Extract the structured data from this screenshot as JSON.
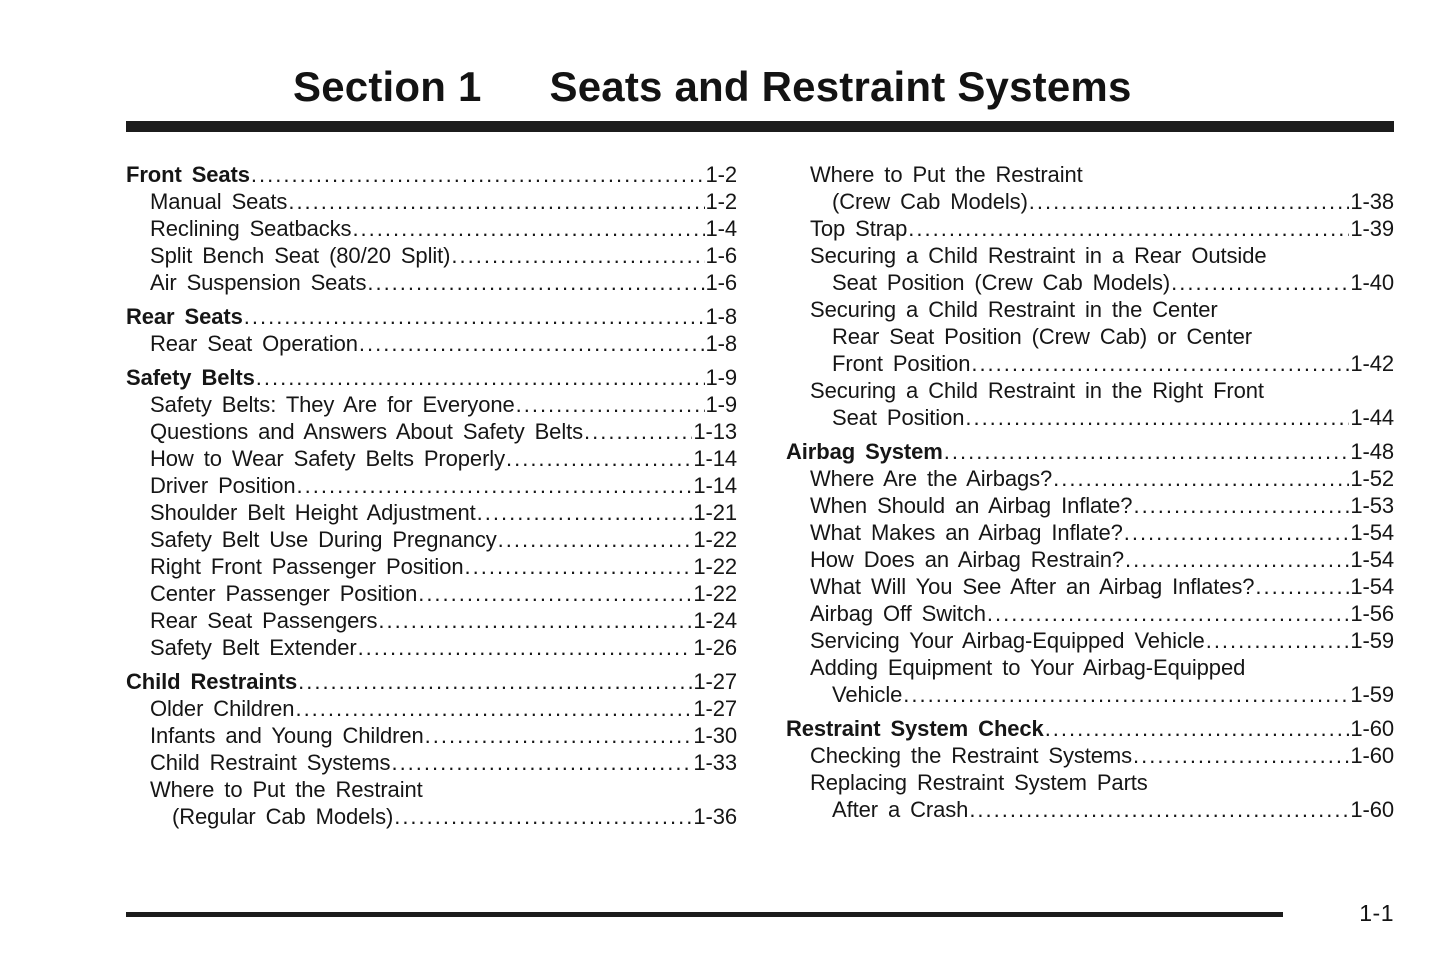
{
  "header": {
    "section_label": "Section 1",
    "section_name": "Seats and Restraint Systems"
  },
  "footer": {
    "page_number": "1-1"
  },
  "toc": {
    "columns": [
      {
        "entries": [
          {
            "lines": [
              "Front Seats"
            ],
            "page": "1-2",
            "bold": true,
            "gap": false
          },
          {
            "lines": [
              "Manual Seats"
            ],
            "page": "1-2",
            "bold": false,
            "gap": false
          },
          {
            "lines": [
              "Reclining Seatbacks"
            ],
            "page": "1-4",
            "bold": false,
            "gap": false
          },
          {
            "lines": [
              "Split Bench Seat (80/20 Split)"
            ],
            "page": "1-6",
            "bold": false,
            "gap": false
          },
          {
            "lines": [
              "Air Suspension Seats"
            ],
            "page": "1-6",
            "bold": false,
            "gap": false
          },
          {
            "lines": [
              "Rear Seats"
            ],
            "page": "1-8",
            "bold": true,
            "gap": true
          },
          {
            "lines": [
              "Rear Seat Operation"
            ],
            "page": "1-8",
            "bold": false,
            "gap": false
          },
          {
            "lines": [
              "Safety Belts"
            ],
            "page": "1-9",
            "bold": true,
            "gap": true
          },
          {
            "lines": [
              "Safety Belts: They Are for Everyone"
            ],
            "page": "1-9",
            "bold": false,
            "gap": false
          },
          {
            "lines": [
              "Questions and Answers About Safety Belts"
            ],
            "page": "1-13",
            "bold": false,
            "gap": false
          },
          {
            "lines": [
              "How to Wear Safety Belts Properly"
            ],
            "page": "1-14",
            "bold": false,
            "gap": false
          },
          {
            "lines": [
              "Driver Position"
            ],
            "page": "1-14",
            "bold": false,
            "gap": false
          },
          {
            "lines": [
              "Shoulder Belt Height Adjustment"
            ],
            "page": "1-21",
            "bold": false,
            "gap": false
          },
          {
            "lines": [
              "Safety Belt Use During Pregnancy"
            ],
            "page": "1-22",
            "bold": false,
            "gap": false
          },
          {
            "lines": [
              "Right Front Passenger Position"
            ],
            "page": "1-22",
            "bold": false,
            "gap": false
          },
          {
            "lines": [
              "Center Passenger Position"
            ],
            "page": "1-22",
            "bold": false,
            "gap": false
          },
          {
            "lines": [
              "Rear Seat Passengers"
            ],
            "page": "1-24",
            "bold": false,
            "gap": false
          },
          {
            "lines": [
              "Safety Belt Extender"
            ],
            "page": "1-26",
            "bold": false,
            "gap": false
          },
          {
            "lines": [
              "Child Restraints"
            ],
            "page": "1-27",
            "bold": true,
            "gap": true
          },
          {
            "lines": [
              "Older Children"
            ],
            "page": "1-27",
            "bold": false,
            "gap": false
          },
          {
            "lines": [
              "Infants and Young Children"
            ],
            "page": "1-30",
            "bold": false,
            "gap": false
          },
          {
            "lines": [
              "Child Restraint Systems"
            ],
            "page": "1-33",
            "bold": false,
            "gap": false
          },
          {
            "lines": [
              "Where to Put the Restraint",
              "(Regular Cab Models)"
            ],
            "page": "1-36",
            "bold": false,
            "gap": false
          }
        ]
      },
      {
        "entries": [
          {
            "lines": [
              "Where to Put the Restraint",
              "(Crew Cab Models)"
            ],
            "page": "1-38",
            "bold": false,
            "gap": false
          },
          {
            "lines": [
              "Top Strap"
            ],
            "page": "1-39",
            "bold": false,
            "gap": false
          },
          {
            "lines": [
              "Securing a Child Restraint in a Rear Outside",
              "Seat Position (Crew Cab Models)"
            ],
            "page": "1-40",
            "bold": false,
            "gap": false
          },
          {
            "lines": [
              "Securing a Child Restraint in the Center",
              "Rear Seat Position (Crew Cab) or Center",
              "Front Position"
            ],
            "page": "1-42",
            "bold": false,
            "gap": false
          },
          {
            "lines": [
              "Securing a Child Restraint in the Right Front",
              "Seat Position"
            ],
            "page": "1-44",
            "bold": false,
            "gap": false
          },
          {
            "lines": [
              "Airbag System"
            ],
            "page": "1-48",
            "bold": true,
            "gap": true
          },
          {
            "lines": [
              "Where Are the Airbags?"
            ],
            "page": "1-52",
            "bold": false,
            "gap": false
          },
          {
            "lines": [
              "When Should an Airbag Inflate?"
            ],
            "page": "1-53",
            "bold": false,
            "gap": false
          },
          {
            "lines": [
              "What Makes an Airbag Inflate?"
            ],
            "page": "1-54",
            "bold": false,
            "gap": false
          },
          {
            "lines": [
              "How Does an Airbag Restrain?"
            ],
            "page": "1-54",
            "bold": false,
            "gap": false
          },
          {
            "lines": [
              "What Will You See After an Airbag Inflates?"
            ],
            "page": "1-54",
            "bold": false,
            "gap": false
          },
          {
            "lines": [
              "Airbag Off Switch"
            ],
            "page": "1-56",
            "bold": false,
            "gap": false
          },
          {
            "lines": [
              "Servicing Your Airbag-Equipped Vehicle"
            ],
            "page": "1-59",
            "bold": false,
            "gap": false
          },
          {
            "lines": [
              "Adding Equipment to Your Airbag-Equipped",
              "Vehicle"
            ],
            "page": "1-59",
            "bold": false,
            "gap": false
          },
          {
            "lines": [
              "Restraint System Check"
            ],
            "page": "1-60",
            "bold": true,
            "gap": true
          },
          {
            "lines": [
              "Checking the Restraint Systems"
            ],
            "page": "1-60",
            "bold": false,
            "gap": false
          },
          {
            "lines": [
              "Replacing Restraint System Parts",
              "After a Crash"
            ],
            "page": "1-60",
            "bold": false,
            "gap": false
          }
        ]
      }
    ]
  }
}
